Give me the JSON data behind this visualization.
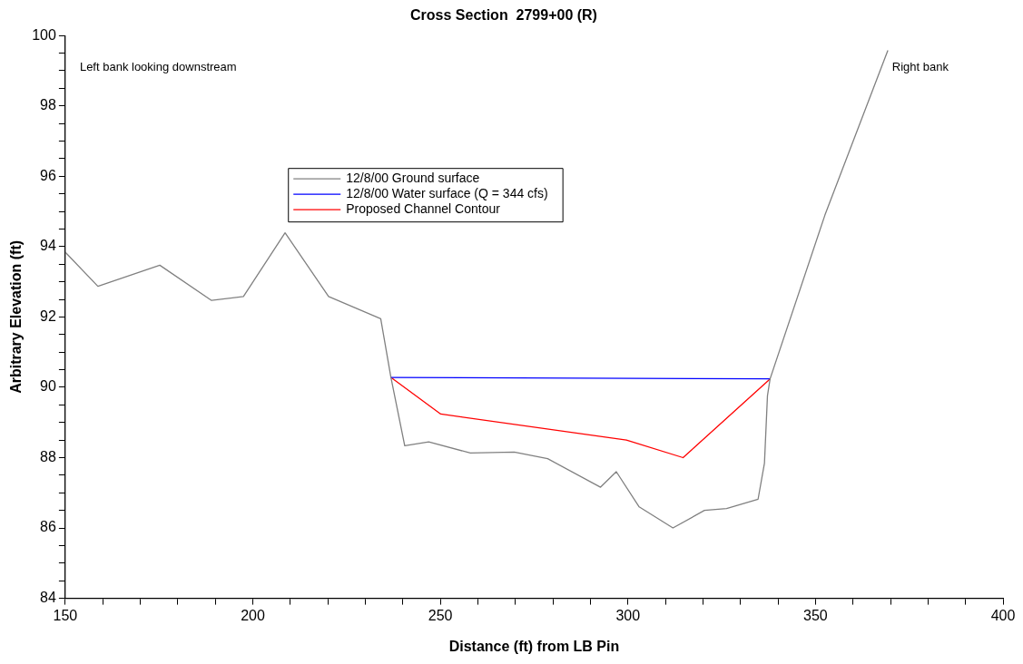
{
  "chart_data": {
    "type": "line",
    "title": "Cross Section  2799+00 (R)",
    "xlabel": "Distance (ft) from LB Pin",
    "ylabel": "Arbitrary Elevation (ft)",
    "xlim": [
      150,
      400
    ],
    "xticks": [
      150,
      {
        "value": 160,
        "label": null
      },
      {
        "value": 170,
        "label": null
      },
      {
        "value": 180,
        "label": null
      },
      {
        "value": 190,
        "label": null
      },
      200,
      {
        "value": 210,
        "label": null
      },
      {
        "value": 220,
        "label": null
      },
      {
        "value": 230,
        "label": null
      },
      {
        "value": 240,
        "label": null
      },
      250,
      {
        "value": 260,
        "label": null
      },
      {
        "value": 270,
        "label": null
      },
      {
        "value": 280,
        "label": null
      },
      {
        "value": 290,
        "label": null
      },
      300,
      {
        "value": 310,
        "label": null
      },
      {
        "value": 320,
        "label": null
      },
      {
        "value": 330,
        "label": null
      },
      {
        "value": 340,
        "label": null
      },
      350,
      {
        "value": 360,
        "label": null
      },
      {
        "value": 370,
        "label": null
      },
      {
        "value": 380,
        "label": null
      },
      {
        "value": 390,
        "label": null
      },
      400
    ],
    "ylim": [
      84,
      100
    ],
    "yticks": [
      84,
      {
        "value": 84.5,
        "label": null
      },
      {
        "value": 85,
        "label": null
      },
      {
        "value": 85.5,
        "label": null
      },
      86,
      {
        "value": 86.5,
        "label": null
      },
      {
        "value": 87,
        "label": null
      },
      {
        "value": 87.5,
        "label": null
      },
      88,
      {
        "value": 88.5,
        "label": null
      },
      {
        "value": 89,
        "label": null
      },
      {
        "value": 89.5,
        "label": null
      },
      90,
      {
        "value": 90.5,
        "label": null
      },
      {
        "value": 91,
        "label": null
      },
      {
        "value": 91.5,
        "label": null
      },
      92,
      {
        "value": 92.5,
        "label": null
      },
      {
        "value": 93,
        "label": null
      },
      {
        "value": 93.5,
        "label": null
      },
      94,
      {
        "value": 94.5,
        "label": null
      },
      {
        "value": 95,
        "label": null
      },
      {
        "value": 95.5,
        "label": null
      },
      96,
      {
        "value": 96.5,
        "label": null
      },
      {
        "value": 97,
        "label": null
      },
      {
        "value": 97.5,
        "label": null
      },
      98,
      {
        "value": 98.5,
        "label": null
      },
      {
        "value": 99,
        "label": null
      },
      {
        "value": 99.5,
        "label": null
      },
      100
    ],
    "series": [
      {
        "name": "12/8/00 Ground surface",
        "color": "#808080",
        "x": [
          150,
          158.7,
          175.2,
          189,
          197.5,
          208.6,
          220.2,
          234.1,
          236.8,
          240.5,
          246.9,
          258,
          269.7,
          278.6,
          292.7,
          296.9,
          303,
          312,
          320.4,
          326.3,
          334.7,
          336.4,
          337.2,
          337.9,
          352.5,
          369.3
        ],
        "values": [
          93.84,
          92.87,
          93.47,
          92.47,
          92.58,
          94.39,
          92.58,
          91.95,
          90.29,
          88.34,
          88.45,
          88.13,
          88.16,
          87.97,
          87.16,
          87.6,
          86.6,
          86.0,
          86.5,
          86.55,
          86.82,
          87.84,
          89.76,
          90.24,
          94.89,
          99.58
        ]
      },
      {
        "name": "12/8/00 Water surface (Q = 344 cfs)",
        "color": "#0000ff",
        "x": [
          236.8,
          337.9
        ],
        "values": [
          90.28,
          90.24
        ]
      },
      {
        "name": "Proposed Channel Contour",
        "color": "#ff0000",
        "x": [
          236.8,
          250.1,
          299.6,
          314.7,
          337.9
        ],
        "values": [
          90.28,
          89.24,
          88.5,
          88.0,
          90.24
        ]
      }
    ],
    "legend": "top",
    "grid": false,
    "marker": "none",
    "annotations": [
      "Left bank looking downstream",
      "Right bank"
    ]
  }
}
